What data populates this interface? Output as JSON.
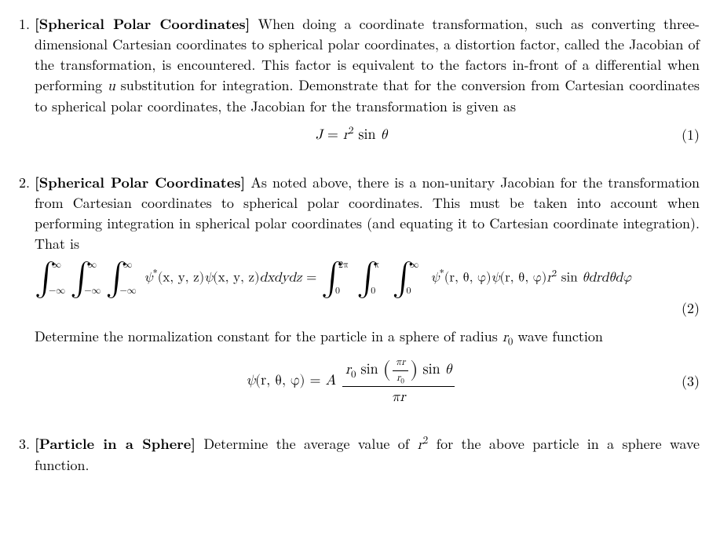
{
  "p1": {
    "title": "[Spherical Polar Coordinates]",
    "body": " When doing a coordinate transformation, such as converting three-dimensional Cartesian coordinates to spherical polar coordinates, a distortion factor, called the Jacobian of the transformation, is encountered. This factor is equivalent to the factors in-front of a differential when performing ",
    "uvar": "u",
    "body2": " substitution for integration. Demonstrate that for the conversion from Cartesian coordinates to spherical polar coordinates, the Jacobian for the transformation is given as",
    "eq_lhs": "J",
    "eq_eq": " = ",
    "eq_rhs_r": "r",
    "eq_rhs_sup": "2",
    "eq_rhs_sin": " sin ",
    "eq_rhs_theta": "θ",
    "eqnum": "(1)"
  },
  "p2": {
    "title": "[Spherical Polar Coordinates]",
    "body": " As noted above, there is a non-unitary Jacobian for the transformation from Cartesian coordinates to spherical polar coordinates. This must be taken into account when performing integration in spherical polar coordinates (and equating it to Cartesian coordinate integration). That is",
    "int_low_inf": "−∞",
    "int_up_inf": "∞",
    "int_low_0": "0",
    "int_up_2pi": "2π",
    "int_up_pi": "π",
    "psi_star": "ψ",
    "star": "*",
    "args_xyz": "(x, y, z)",
    "psi": "ψ",
    "dxyz": "dxdydz",
    "eq_sign": " = ",
    "args_rtp": "(r, θ, φ)",
    "r": "r",
    "sup2": "2",
    "sin": " sin ",
    "theta": "θ",
    "drdtdp": "drdθdφ",
    "eqnum": "(2)",
    "body2a": "Determine the normalization constant for the particle in a sphere of radius ",
    "r0": "r",
    "r0sub": "0",
    "body2b": " wave function",
    "wf_lhs_psi": "ψ",
    "wf_lhs_args": "(r, θ, φ)",
    "wf_eq": " = ",
    "wf_A": "A",
    "wf_num_r0": "r",
    "wf_num_r0sub": "0",
    "wf_num_sin1": " sin ",
    "wf_inner_num_pi_r": "πr",
    "wf_inner_den_r0": "r",
    "wf_inner_den_r0sub": "0",
    "wf_num_sin2": " sin ",
    "wf_num_theta": "θ",
    "wf_den_pi_r": "πr",
    "wf_eqnum": "(3)"
  },
  "p3": {
    "title": "[Particle in a Sphere]",
    "body_a": " Determine the average value of ",
    "r": "r",
    "sup2": "2",
    "body_b": " for the above particle in a sphere wave function."
  }
}
